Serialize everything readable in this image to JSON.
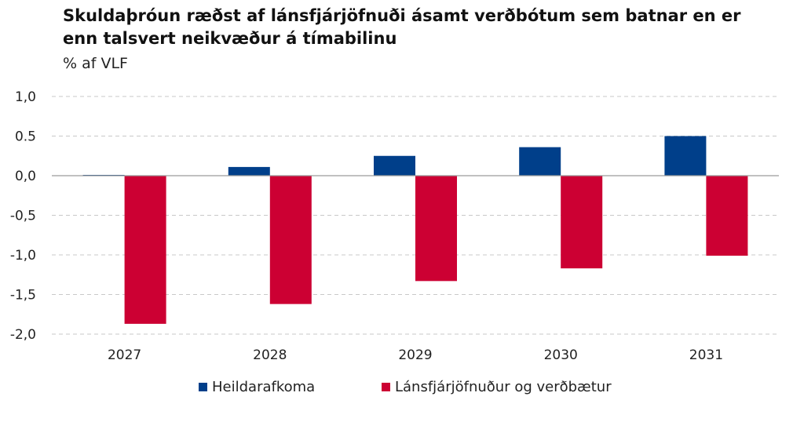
{
  "chart_data": {
    "type": "bar",
    "title": "Skuldaþróun ræðst af lánsfjárjöfnuði ásamt verðbótum sem batnar en er enn talsvert neikvæður á tímabilinu",
    "subtitle": "% af VLF",
    "categories": [
      "2027",
      "2028",
      "2029",
      "2030",
      "2031"
    ],
    "series": [
      {
        "name": "Heildarafkoma",
        "color": "#003f8a",
        "values": [
          0.01,
          0.11,
          0.25,
          0.36,
          0.5
        ]
      },
      {
        "name": "Lánsfjárjöfnuður og verðbætur",
        "color": "#cc0033",
        "values": [
          -1.87,
          -1.62,
          -1.33,
          -1.17,
          -1.01
        ]
      }
    ],
    "ylim": [
      -2.0,
      1.0
    ],
    "yticks": [
      1.0,
      0.5,
      0.0,
      -0.5,
      -1.0,
      -1.5,
      -2.0
    ],
    "ytick_labels": [
      "1,0",
      "0.5",
      "0,0",
      "-0,5",
      "-1,0",
      "-1,5",
      "-2,0"
    ],
    "grid": true,
    "legend_position": "bottom"
  }
}
